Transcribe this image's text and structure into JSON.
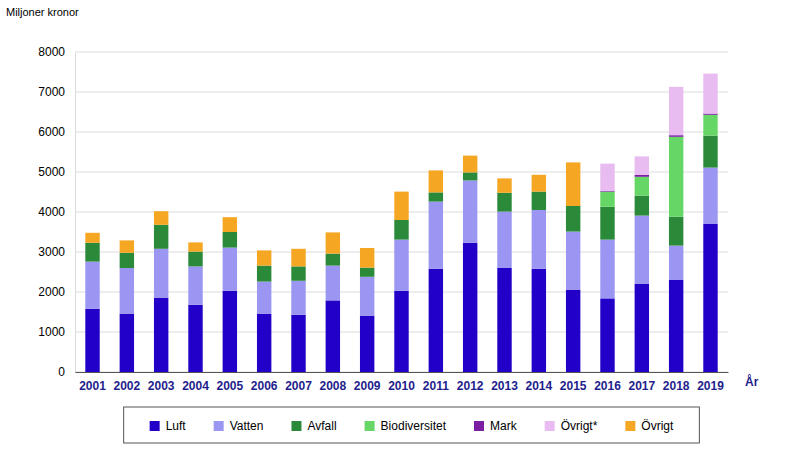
{
  "chart_data": {
    "type": "bar",
    "stacked": true,
    "y_label": "Miljoner kronor",
    "x_label": "År",
    "categories": [
      "2001",
      "2002",
      "2003",
      "2004",
      "2005",
      "2006",
      "2007",
      "2008",
      "2009",
      "2010",
      "2011",
      "2012",
      "2013",
      "2014",
      "2015",
      "2016",
      "2017",
      "2018",
      "2019"
    ],
    "ylim": [
      0,
      8000
    ],
    "yticks": [
      0,
      1000,
      2000,
      3000,
      4000,
      5000,
      6000,
      7000,
      8000
    ],
    "grid": true,
    "legend": "bottom",
    "series": [
      {
        "name": "Luft",
        "color": "#2200c8",
        "values": [
          1580,
          1460,
          1860,
          1680,
          2030,
          1460,
          1430,
          1790,
          1410,
          2030,
          2580,
          3230,
          2600,
          2580,
          2060,
          1840,
          2210,
          2310,
          3710
        ]
      },
      {
        "name": "Vatten",
        "color": "#9a96f2",
        "values": [
          1180,
          1140,
          1220,
          960,
          1080,
          800,
          850,
          870,
          970,
          1280,
          1680,
          1560,
          1410,
          1470,
          1450,
          1470,
          1700,
          850,
          1400
        ]
      },
      {
        "name": "Avfall",
        "color": "#2a8a3a",
        "values": [
          470,
          380,
          600,
          370,
          390,
          400,
          360,
          300,
          230,
          490,
          230,
          200,
          470,
          460,
          640,
          820,
          500,
          720,
          800
        ]
      },
      {
        "name": "Biodiversitet",
        "color": "#66d766",
        "values": [
          null,
          null,
          null,
          null,
          null,
          null,
          null,
          null,
          null,
          null,
          null,
          null,
          null,
          null,
          null,
          380,
          470,
          2000,
          520
        ]
      },
      {
        "name": "Mark",
        "color": "#7a1fa2",
        "values": [
          null,
          null,
          null,
          null,
          null,
          null,
          null,
          null,
          null,
          null,
          null,
          null,
          null,
          null,
          null,
          20,
          50,
          40,
          30
        ]
      },
      {
        "name": "Övrigt*",
        "color": "#e8bcf0",
        "values": [
          null,
          null,
          null,
          null,
          null,
          null,
          null,
          null,
          null,
          null,
          null,
          null,
          null,
          null,
          null,
          680,
          460,
          1210,
          1000
        ]
      },
      {
        "name": "Övrigt",
        "color": "#f5a623",
        "values": [
          250,
          310,
          340,
          230,
          370,
          380,
          440,
          530,
          490,
          710,
          550,
          420,
          360,
          420,
          1090,
          null,
          null,
          null,
          null
        ]
      }
    ]
  }
}
